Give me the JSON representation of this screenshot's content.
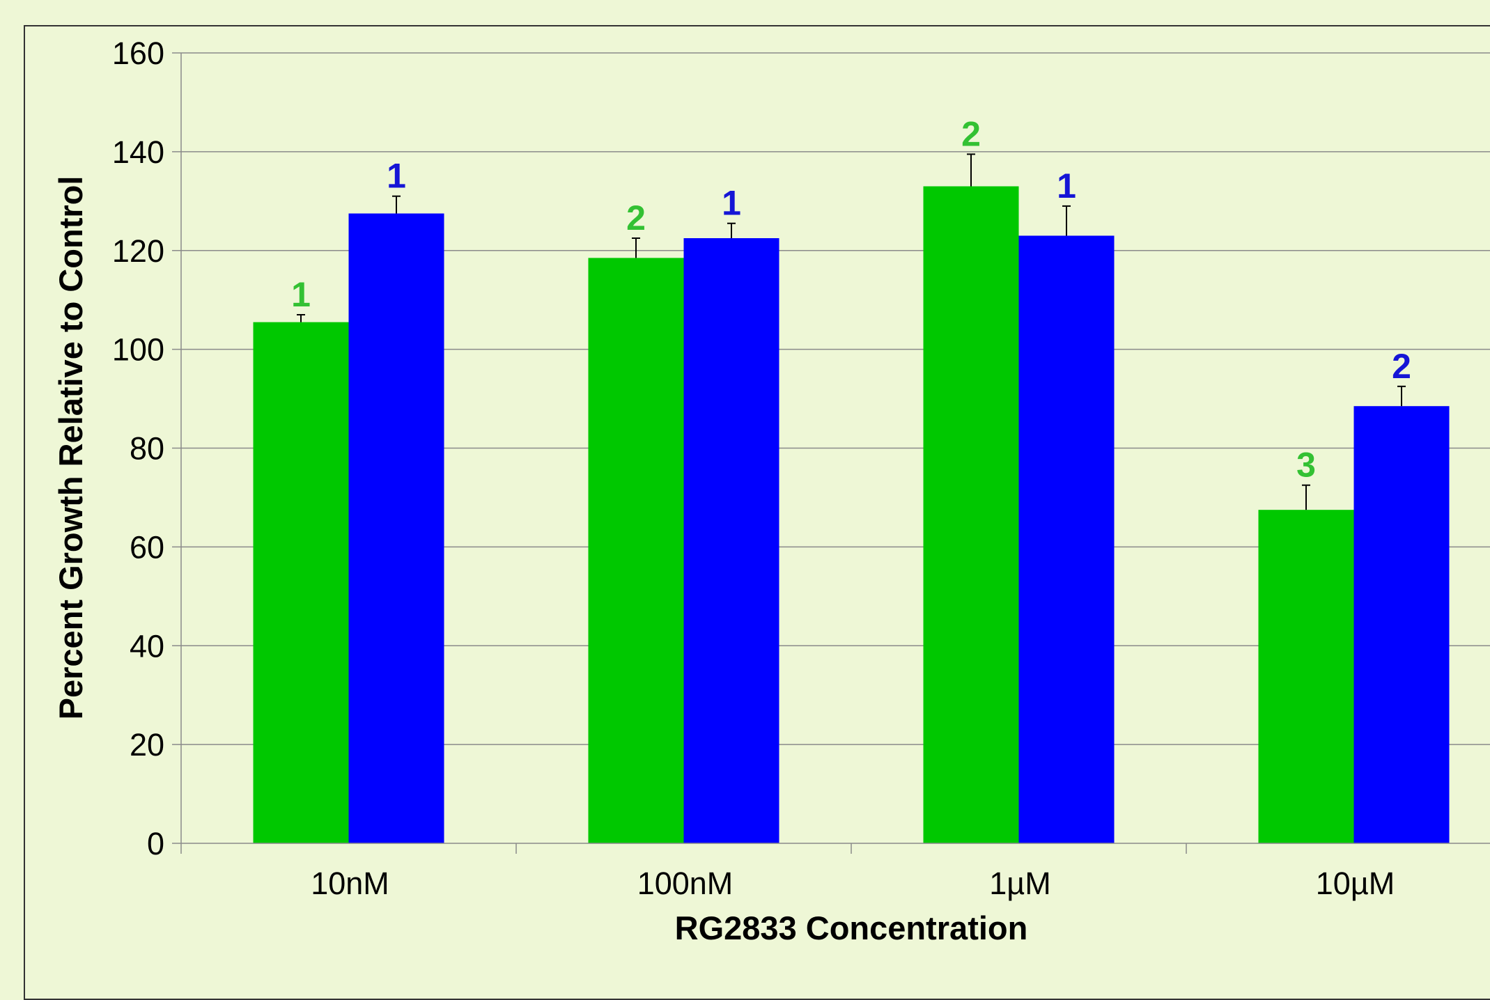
{
  "chart_data": {
    "type": "bar",
    "title": "",
    "xlabel": "RG2833 Concentration",
    "ylabel": "Percent Growth Relative to Control",
    "ylim": [
      0,
      160
    ],
    "yticks": [
      "0",
      "20",
      "40",
      "60",
      "80",
      "100",
      "120",
      "140",
      "160"
    ],
    "categories": [
      "10nM",
      "100nM",
      "1µM",
      "10µM"
    ],
    "grid": true,
    "legend": "none",
    "series": [
      {
        "color": "#00c800",
        "label_color": "#33c133",
        "values": [
          105.5,
          118.5,
          133,
          67.5
        ],
        "errors": [
          1.5,
          4,
          6.5,
          5
        ],
        "labels": [
          "1",
          "2",
          "2",
          "3"
        ]
      },
      {
        "color": "#0000ff",
        "label_color": "#1515d6",
        "values": [
          127.5,
          122.5,
          123,
          88.5
        ],
        "errors": [
          3.5,
          3,
          6,
          4
        ],
        "labels": [
          "1",
          "1",
          "1",
          "2"
        ]
      }
    ]
  }
}
